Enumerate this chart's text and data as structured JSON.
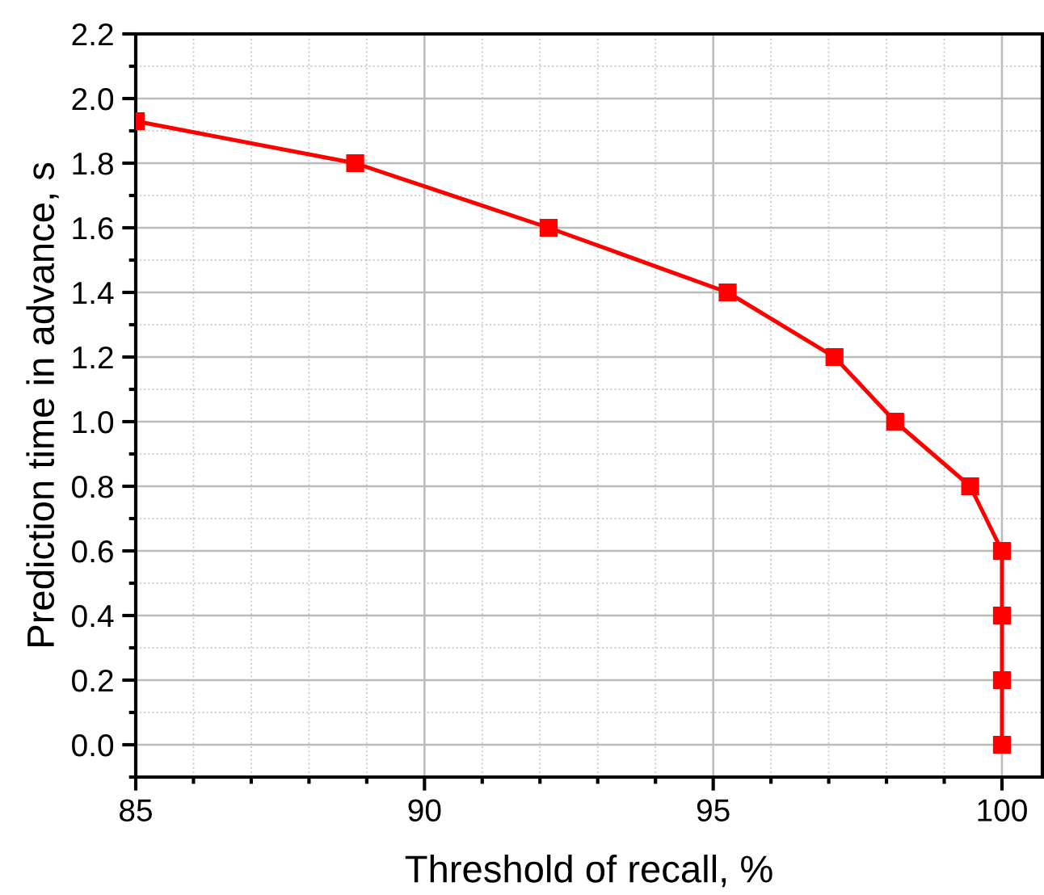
{
  "chart_data": {
    "type": "line",
    "xlabel": "Threshold of recall, %",
    "ylabel": "Prediction time in advance, s",
    "x": [
      85,
      88.8,
      92.15,
      95.25,
      97.1,
      98.15,
      99.45,
      100,
      100,
      100,
      100
    ],
    "series": [
      {
        "color": "#ff0000",
        "values": [
          1.93,
          1.8,
          1.6,
          1.4,
          1.2,
          1.0,
          0.8,
          0.6,
          0.4,
          0.2,
          0.0
        ]
      }
    ],
    "xlim": [
      85,
      100.7
    ],
    "xticks": [
      85,
      90,
      95,
      100
    ],
    "ylim": [
      -0.1,
      2.2
    ],
    "yticks": [
      {
        "value": 0,
        "label": "0.0"
      },
      {
        "value": 0.2,
        "label": "0.2"
      },
      {
        "value": 0.4,
        "label": "0.4"
      },
      {
        "value": 0.6,
        "label": "0.6"
      },
      {
        "value": 0.8,
        "label": "0.8"
      },
      {
        "value": 1.0,
        "label": "1.0"
      },
      {
        "value": 1.2,
        "label": "1.2"
      },
      {
        "value": 1.4,
        "label": "1.4"
      },
      {
        "value": 1.6,
        "label": "1.6"
      },
      {
        "value": 1.8,
        "label": "1.8"
      },
      {
        "value": 2.0,
        "label": "2.0"
      },
      {
        "value": 2.2,
        "label": "2.2"
      }
    ],
    "grid": true,
    "marker": "square",
    "line_style": "solid"
  }
}
